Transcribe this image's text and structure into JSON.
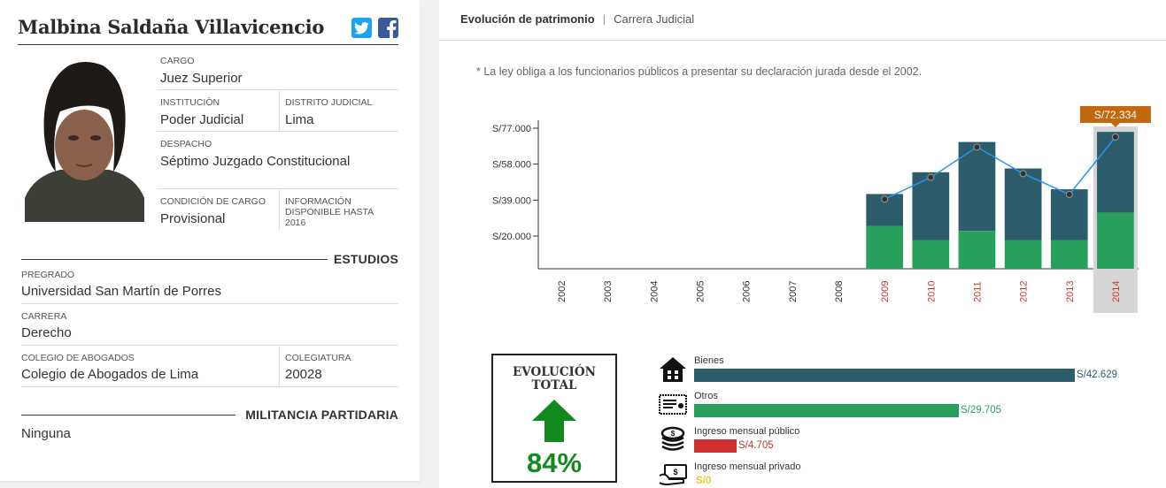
{
  "profile": {
    "name": "Malbina Saldaña Villavicencio",
    "social": {
      "twitter": "twitter-icon",
      "facebook": "facebook-icon"
    },
    "cargo_label": "CARGO",
    "cargo": "Juez Superior",
    "institucion_label": "INSTITUCIÓN",
    "institucion": "Poder Judicial",
    "distrito_label": "DISTRITO JUDICIAL",
    "distrito": "Lima",
    "despacho_label": "DESPACHO",
    "despacho": "Séptimo Juzgado Constitucional",
    "condicion_label": "CONDICIÓN DE CARGO",
    "condicion": "Provisional",
    "info_label_1": "INFORMACIÓN",
    "info_label_2": "DISPONIBLE HASTA",
    "info_year": "2016"
  },
  "estudios": {
    "title": "ESTUDIOS",
    "pregrado_label": "PREGRADO",
    "pregrado": "Universidad San Martín de Porres",
    "carrera_label": "CARRERA",
    "carrera": "Derecho",
    "colegio_label": "COLEGIO DE ABOGADOS",
    "colegio": "Colegio de Abogados de Lima",
    "colegiatura_label": "COLEGIATURA",
    "colegiatura": "20028"
  },
  "militancia": {
    "title": "MILITANCIA PARTIDARIA",
    "value": "Ninguna"
  },
  "tabs": {
    "active": "Evolución de patrimonio",
    "separator": "|",
    "other": "Carrera Judicial"
  },
  "note": "* La ley obliga a los funcionarios públicos a presentar su declaración jurada desde el 2002.",
  "chart_data": {
    "type": "bar",
    "categories": [
      "2002",
      "2003",
      "2004",
      "2005",
      "2006",
      "2007",
      "2008",
      "2009",
      "2010",
      "2011",
      "2012",
      "2013",
      "2014"
    ],
    "yticks": [
      "S/77.000",
      "S/58.000",
      "S/39.000",
      "S/20.000"
    ],
    "ytick_values": [
      77000,
      58000,
      39000,
      20000
    ],
    "ylim": [
      0,
      77000
    ],
    "series": [
      {
        "values": [
          null,
          null,
          null,
          null,
          null,
          null,
          null,
          22500,
          15000,
          20000,
          15000,
          15000,
          29705
        ]
      },
      {
        "values": [
          null,
          null,
          null,
          null,
          null,
          null,
          null,
          17000,
          36000,
          47000,
          38000,
          27000,
          42629
        ]
      }
    ],
    "line_values": [
      null,
      null,
      null,
      null,
      null,
      null,
      null,
      39500,
      51000,
      67000,
      53000,
      42000,
      72334
    ],
    "highlight": {
      "category": "2014",
      "label": "S/72.334"
    },
    "colors": {
      "top": "#2d5c6b",
      "bottom": "#27a05e",
      "line": "#2196f3",
      "highlight_bg": "#d6d6d6",
      "tooltip": "#c0690f",
      "label_active": "#c0392b"
    }
  },
  "evolucion": {
    "title_1": "EVOLUCIÓN",
    "title_2": "TOTAL",
    "percent": "84%",
    "icon": "arrow-up-icon",
    "color": "#138a1f"
  },
  "breakdown": [
    {
      "label": "Bienes",
      "value": "S/42.629",
      "fraction": 0.995,
      "color": "#2d5c6b",
      "icon": "house-icon"
    },
    {
      "label": "Otros",
      "value": "S/29.705",
      "fraction": 0.693,
      "color": "#27a05e",
      "icon": "certificate-icon"
    },
    {
      "label": "Ingreso mensual público",
      "value": "S/4.705",
      "fraction": 0.11,
      "color": "#d32f2f",
      "icon": "coins-icon"
    },
    {
      "label": "Ingreso mensual privado",
      "value": "S/0",
      "fraction": 0,
      "color": "#f2c531",
      "icon": "cash-icon"
    }
  ]
}
